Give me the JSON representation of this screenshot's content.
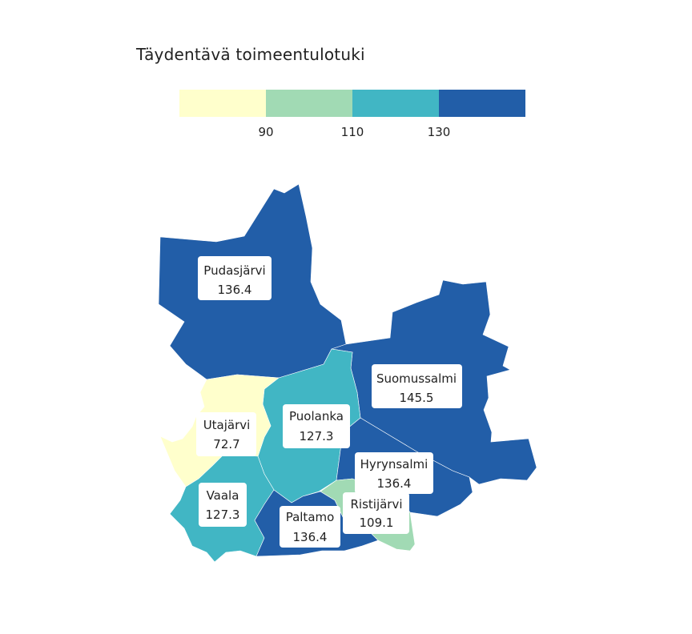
{
  "title": "Täydentävä toimeentulotuki",
  "legend": {
    "ticks": [
      "90",
      "110",
      "130"
    ],
    "colors": [
      "#ffffcc",
      "#a1dab4",
      "#41b6c4",
      "#225ea8"
    ]
  },
  "regions": [
    {
      "name": "Pudasjärvi",
      "value": "136.4",
      "color": "#225ea8"
    },
    {
      "name": "Suomussalmi",
      "value": "145.5",
      "color": "#225ea8"
    },
    {
      "name": "Puolanka",
      "value": "127.3",
      "color": "#41b6c4"
    },
    {
      "name": "Utajärvi",
      "value": "72.7",
      "color": "#ffffcc"
    },
    {
      "name": "Hyrynsalmi",
      "value": "136.4",
      "color": "#225ea8"
    },
    {
      "name": "Vaala",
      "value": "127.3",
      "color": "#41b6c4"
    },
    {
      "name": "Ristijärvi",
      "value": "109.1",
      "color": "#a1dab4"
    },
    {
      "name": "Paltamo",
      "value": "136.4",
      "color": "#225ea8"
    }
  ]
}
